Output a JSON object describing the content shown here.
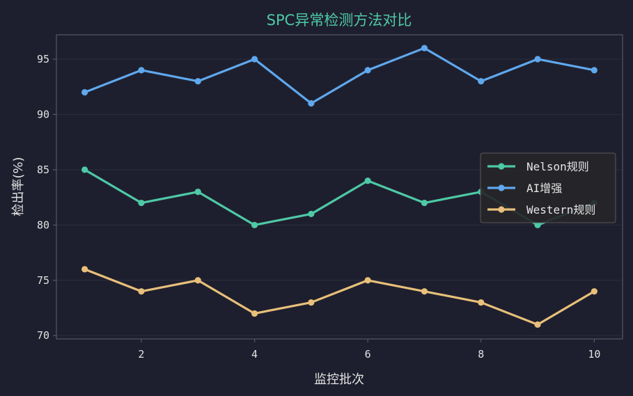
{
  "chart_data": {
    "type": "line",
    "title": "SPC异常检测方法对比",
    "xlabel": "监控批次",
    "ylabel": "检出率(%)",
    "x": [
      1,
      2,
      3,
      4,
      5,
      6,
      7,
      8,
      9,
      10
    ],
    "x_ticks": [
      "2",
      "4",
      "6",
      "8",
      "10"
    ],
    "y_ticks": [
      "70",
      "75",
      "80",
      "85",
      "90",
      "95"
    ],
    "xlim": [
      0.5,
      10.5
    ],
    "ylim": [
      69.7,
      97.2
    ],
    "grid": "horizontal",
    "legend_position": "center-right",
    "series": [
      {
        "name": "Nelson规则",
        "color": "#4ec9a6",
        "values": [
          85,
          82,
          83,
          80,
          81,
          84,
          82,
          83,
          80,
          82
        ]
      },
      {
        "name": "AI增强",
        "color": "#5fa8ee",
        "values": [
          92,
          94,
          93,
          95,
          91,
          94,
          96,
          93,
          95,
          94
        ]
      },
      {
        "name": "Western规则",
        "color": "#e8c07a",
        "values": [
          76,
          74,
          75,
          72,
          73,
          75,
          74,
          73,
          71,
          74
        ]
      }
    ]
  },
  "colors": {
    "background": "#1e1f2e",
    "title": "#4ec9a6",
    "axis": "#555868",
    "grid": "#2c2d3e",
    "legend_bg": "#262629",
    "legend_border": "#5a5a5a"
  }
}
